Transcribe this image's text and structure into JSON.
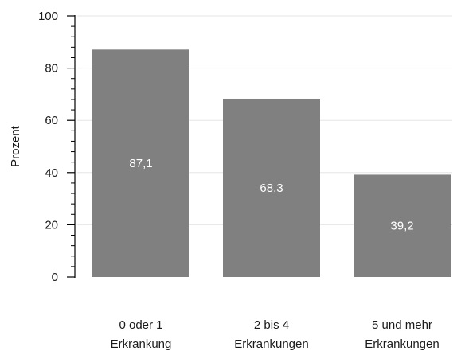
{
  "chart_data": {
    "type": "bar",
    "categories": [
      [
        "0 oder 1",
        "Erkrankung"
      ],
      [
        "2 bis 4",
        "Erkrankungen"
      ],
      [
        "5 und mehr",
        "Erkrankungen"
      ]
    ],
    "values": [
      87.1,
      68.3,
      39.2
    ],
    "value_labels": [
      "87,1",
      "68,3",
      "39,2"
    ],
    "ylabel": "Prozent",
    "ylim": [
      0,
      100
    ],
    "yticks": [
      0,
      20,
      40,
      60,
      80,
      100
    ],
    "ytick_labels": [
      "0",
      "20",
      "40",
      "60",
      "80",
      "100"
    ],
    "minor_tick_step": 4,
    "grid": true,
    "bar_color": "#808080",
    "grid_color": "#e6e6e6",
    "label_color": "#ffffff",
    "text_color": "#1a1a1a"
  }
}
